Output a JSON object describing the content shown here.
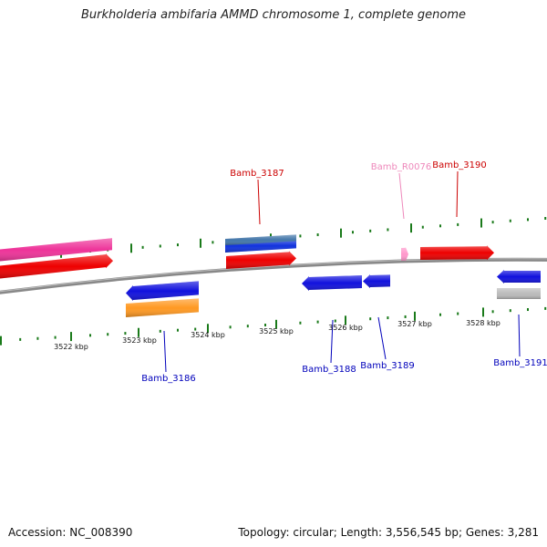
{
  "title": "Burkholderia ambifaria AMMD chromosome 1, complete genome",
  "footer": {
    "accession": "Accession: NC_008390",
    "topology": "Topology: circular; Length: 3,556,545 bp; Genes: 3,281"
  },
  "colors": {
    "backbone": "#888888",
    "tick": "#1a7a1a",
    "forward_label": "#cc0000",
    "reverse_label": "#0000bb",
    "rna_label": "#ee88bb"
  },
  "scale": {
    "unit": "kbp",
    "labels": [
      "3522 kbp",
      "3523 kbp",
      "3524 kbp",
      "3525 kbp",
      "3526 kbp",
      "3527 kbp",
      "3528 kbp"
    ]
  },
  "features": {
    "forward": [
      {
        "id": "fwd-pink",
        "color": "#ee3399",
        "strand": "+"
      },
      {
        "id": "fwd-red-1",
        "color": "#ee0000",
        "strand": "+"
      },
      {
        "id": "fwd-blue",
        "color": "#1133dd",
        "strand": "+"
      },
      {
        "id": "fwd-steel",
        "color": "#4477aa",
        "strand": "+"
      },
      {
        "id": "fwd-red-2",
        "color": "#ee0000",
        "strand": "+"
      },
      {
        "id": "fwd-rna",
        "color": "#ff99cc",
        "strand": "+"
      },
      {
        "id": "fwd-red-3",
        "color": "#ee0000",
        "strand": "+"
      }
    ],
    "reverse": [
      {
        "id": "rev-blue-1",
        "color": "#1111dd",
        "strand": "-"
      },
      {
        "id": "rev-orange",
        "color": "#ff9922",
        "strand": "-"
      },
      {
        "id": "rev-blue-2",
        "color": "#1111dd",
        "strand": "-"
      },
      {
        "id": "rev-blue-3",
        "color": "#1111dd",
        "strand": "-"
      },
      {
        "id": "rev-blue-4",
        "color": "#1111dd",
        "strand": "-"
      },
      {
        "id": "rev-grey",
        "color": "#bbbbbb",
        "strand": "-"
      }
    ]
  },
  "gene_labels": [
    {
      "name": "Bamb_3187",
      "type": "forward"
    },
    {
      "name": "Bamb_R0076",
      "type": "rna"
    },
    {
      "name": "Bamb_3190",
      "type": "forward"
    },
    {
      "name": "Bamb_3186",
      "type": "reverse"
    },
    {
      "name": "Bamb_3188",
      "type": "reverse"
    },
    {
      "name": "Bamb_3189",
      "type": "reverse"
    },
    {
      "name": "Bamb_3191",
      "type": "reverse"
    }
  ]
}
